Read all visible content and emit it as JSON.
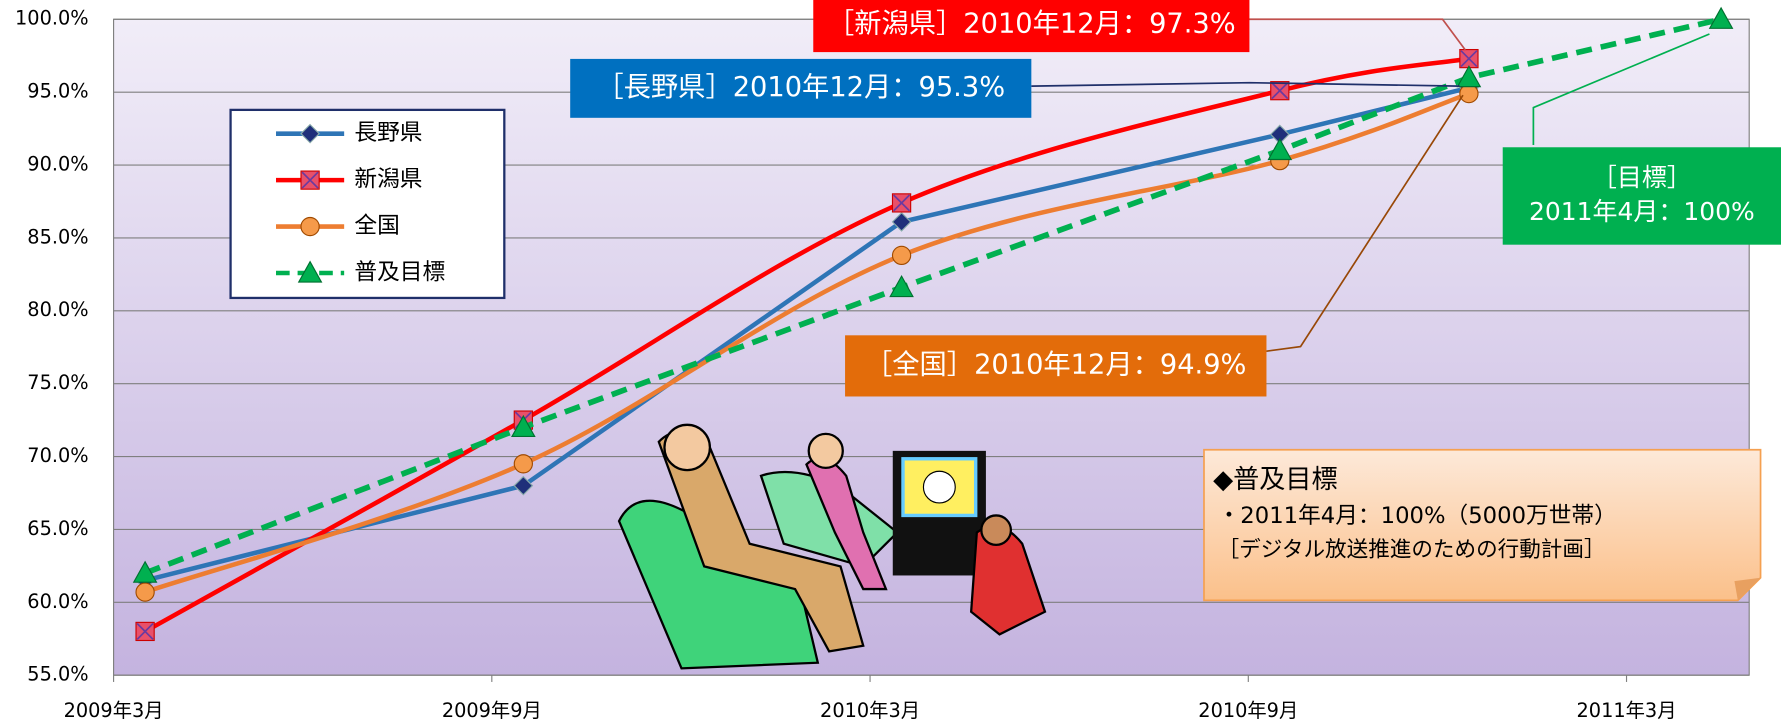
{
  "chart_data": {
    "type": "line",
    "xticks": [
      "2009年3月",
      "2009年9月",
      "2010年3月",
      "2010年9月",
      "2011年3月"
    ],
    "ylim": [
      55,
      100
    ],
    "yticks": [
      {
        "value": 55,
        "label": "55.0%"
      },
      {
        "value": 60,
        "label": "60.0%"
      },
      {
        "value": 65,
        "label": "65.0%"
      },
      {
        "value": 70,
        "label": "70.0%"
      },
      {
        "value": 75,
        "label": "75.0%"
      },
      {
        "value": 80,
        "label": "80.0%"
      },
      {
        "value": 85,
        "label": "85.0%"
      },
      {
        "value": 90,
        "label": "90.0%"
      },
      {
        "value": 95,
        "label": "95.0%"
      },
      {
        "value": 100,
        "label": "100.0%"
      }
    ],
    "grid": true,
    "series": [
      {
        "name": "長野県",
        "color": "#2e75b6",
        "marker": "diamond",
        "smooth": false,
        "x": [
          "2009年3月",
          "2009年9月",
          "2010年3月",
          "2010年9月",
          "2010年12月"
        ],
        "values": [
          61.5,
          68.0,
          86.1,
          92.1,
          95.3
        ]
      },
      {
        "name": "新潟県",
        "color": "#ff0000",
        "marker": "square",
        "smooth": true,
        "x": [
          "2009年3月",
          "2009年9月",
          "2010年3月",
          "2010年9月",
          "2010年12月"
        ],
        "values": [
          58.0,
          72.5,
          87.4,
          95.1,
          97.3
        ]
      },
      {
        "name": "全国",
        "color": "#ed7d31",
        "marker": "circle",
        "smooth": true,
        "x": [
          "2009年3月",
          "2009年9月",
          "2010年3月",
          "2010年9月",
          "2010年12月"
        ],
        "values": [
          60.7,
          69.5,
          83.8,
          90.3,
          94.9
        ]
      },
      {
        "name": "普及目標",
        "color": "#00b050",
        "marker": "triangle",
        "smooth": false,
        "dashed": true,
        "x": [
          "2009年3月",
          "2009年9月",
          "2010年3月",
          "2010年9月",
          "2010年12月",
          "2011年4月"
        ],
        "values": [
          62.0,
          72.0,
          81.6,
          91.0,
          96.0,
          100
        ]
      }
    ],
    "annotations": [
      {
        "lines": [
          "［新潟県］2010年12月：97.3%"
        ],
        "color": "#ff0000"
      },
      {
        "lines": [
          "［長野県］2010年12月：95.3%"
        ],
        "color": "#0070c0"
      },
      {
        "lines": [
          "［全国］2010年12月：94.9%"
        ],
        "color": "#e36c0a"
      },
      {
        "lines": [
          "［目標］",
          "2011年4月：100%"
        ],
        "color": "#00b050"
      }
    ],
    "note": {
      "lines": [
        "◆普及目標",
        "・2011年4月：100%（5000万世帯）",
        "［デジタル放送推進のための行動計画］"
      ]
    }
  }
}
